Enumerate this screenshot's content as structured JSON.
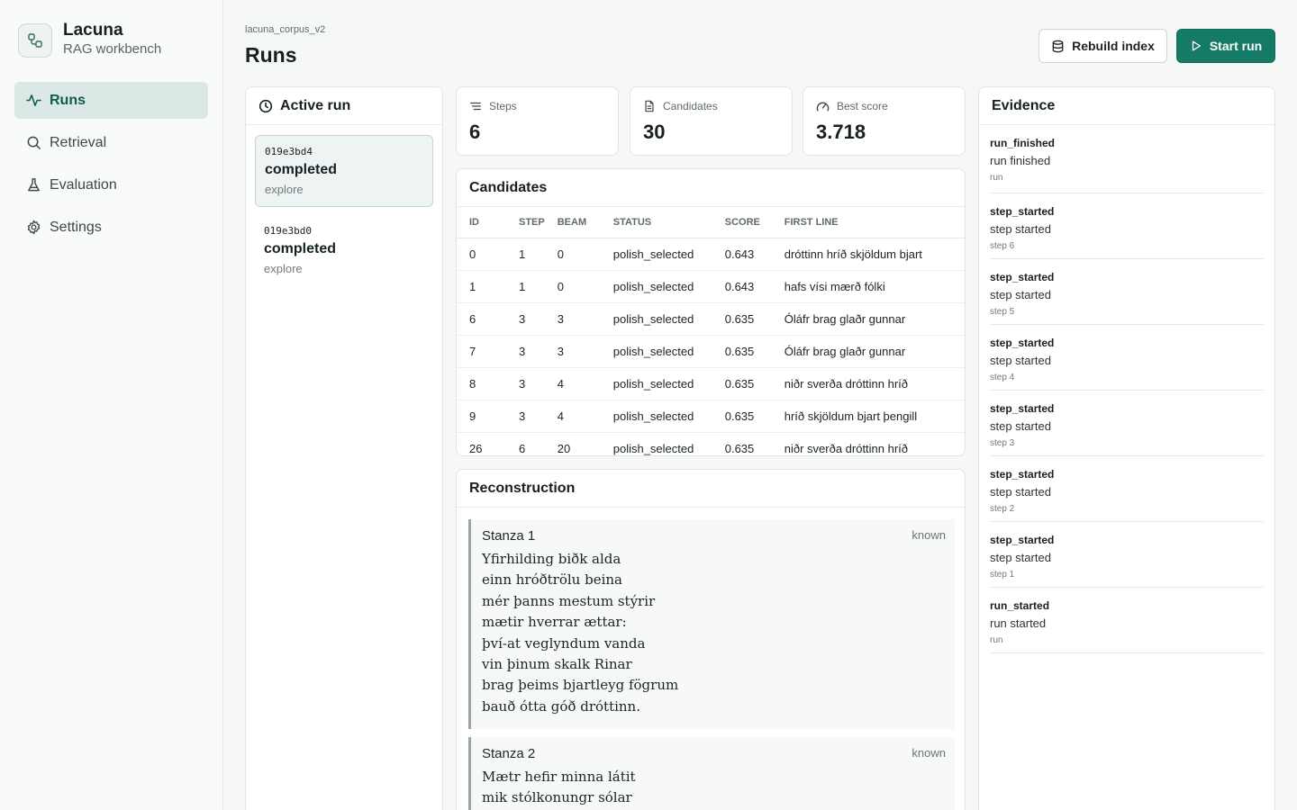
{
  "app": {
    "name": "Lacuna",
    "subtitle": "RAG workbench",
    "accent": "#157a66"
  },
  "nav": [
    {
      "label": "Runs",
      "icon": "activity-icon",
      "active": true
    },
    {
      "label": "Retrieval",
      "icon": "search-icon",
      "active": false
    },
    {
      "label": "Evaluation",
      "icon": "flask-icon",
      "active": false
    },
    {
      "label": "Settings",
      "icon": "gear-icon",
      "active": false
    }
  ],
  "header": {
    "breadcrumb": "lacuna_corpus_v2",
    "title": "Runs",
    "rebuild_label": "Rebuild index",
    "start_label": "Start run"
  },
  "active_run": {
    "title": "Active run",
    "runs": [
      {
        "id": "019e3bd4",
        "status": "completed",
        "mode": "explore",
        "selected": true
      },
      {
        "id": "019e3bd0",
        "status": "completed",
        "mode": "explore",
        "selected": false
      }
    ]
  },
  "stats": {
    "steps": {
      "label": "Steps",
      "value": "6"
    },
    "candidates": {
      "label": "Candidates",
      "value": "30"
    },
    "best_score": {
      "label": "Best score",
      "value": "3.718"
    }
  },
  "candidates": {
    "title": "Candidates",
    "columns": [
      "ID",
      "STEP",
      "BEAM",
      "STATUS",
      "SCORE",
      "FIRST LINE"
    ],
    "rows": [
      [
        "0",
        "1",
        "0",
        "polish_selected",
        "0.643",
        "dróttinn hríð skjöldum bjart"
      ],
      [
        "1",
        "1",
        "0",
        "polish_selected",
        "0.643",
        "hafs vísi mærð fólki"
      ],
      [
        "6",
        "3",
        "3",
        "polish_selected",
        "0.635",
        "Óláfr brag glaðr gunnar"
      ],
      [
        "7",
        "3",
        "3",
        "polish_selected",
        "0.635",
        "Óláfr brag glaðr gunnar"
      ],
      [
        "8",
        "3",
        "4",
        "polish_selected",
        "0.635",
        "niðr sverða dróttinn hríð"
      ],
      [
        "9",
        "3",
        "4",
        "polish_selected",
        "0.635",
        "hríð skjöldum bjart þengill"
      ],
      [
        "26",
        "6",
        "20",
        "polish_selected",
        "0.635",
        "niðr sverða dróttinn hríð"
      ]
    ]
  },
  "reconstruction": {
    "title": "Reconstruction",
    "stanzas": [
      {
        "title": "Stanza 1",
        "tag": "known",
        "lines": [
          "Yfirhilding biðk alda",
          "einn hróðtrölu beina",
          "mér þanns mestum stýrir",
          "mætir hverrar ættar:",
          "því-at veglyndum vanda",
          "vin þinum skalk Rinar",
          "brag þeims bjartleyg fögrum",
          "bauð ótta góð dróttinn."
        ]
      },
      {
        "title": "Stanza 2",
        "tag": "known",
        "lines": [
          "Mætr hefir minna látit",
          "mik stólkonungr sólar"
        ]
      }
    ]
  },
  "evidence": {
    "title": "Evidence",
    "events": [
      {
        "kind": "run_finished",
        "message": "run finished",
        "scope": "run"
      },
      {
        "kind": "step_started",
        "message": "step started",
        "scope": "step 6"
      },
      {
        "kind": "step_started",
        "message": "step started",
        "scope": "step 5"
      },
      {
        "kind": "step_started",
        "message": "step started",
        "scope": "step 4"
      },
      {
        "kind": "step_started",
        "message": "step started",
        "scope": "step 3"
      },
      {
        "kind": "step_started",
        "message": "step started",
        "scope": "step 2"
      },
      {
        "kind": "step_started",
        "message": "step started",
        "scope": "step 1"
      },
      {
        "kind": "run_started",
        "message": "run started",
        "scope": "run"
      }
    ]
  }
}
